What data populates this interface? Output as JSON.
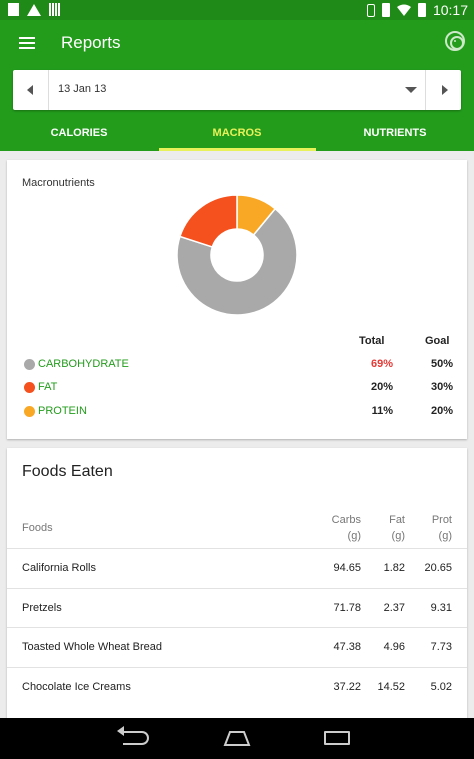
{
  "status_bar": {
    "time": "10:17"
  },
  "app_bar": {
    "title": "Reports",
    "menu_icon": "hamburger-menu-icon",
    "goal_icon": "target-icon"
  },
  "date_selector": {
    "value": "13 Jan 13",
    "prev_icon": "chevron-left-icon",
    "next_icon": "chevron-right-icon",
    "dropdown_icon": "dropdown-arrow-icon"
  },
  "tabs": [
    {
      "label": "CALORIES",
      "active": false
    },
    {
      "label": "MACROS",
      "active": true
    },
    {
      "label": "NUTRIENTS",
      "active": false
    }
  ],
  "colors": {
    "primary": "#239c1c",
    "status_bar": "#1f8a17",
    "tab_active": "#e8f15a",
    "over_goal": "#e53935"
  },
  "macros": {
    "title": "Macronutrients",
    "col_total": "Total",
    "col_goal": "Goal",
    "items": [
      {
        "label": "CARBOHYDRATE",
        "total": "69%",
        "goal": "50%",
        "color": "#a9a9a9",
        "value": 69,
        "over_goal": true
      },
      {
        "label": "FAT",
        "total": "20%",
        "goal": "30%",
        "color": "#f4511e",
        "value": 20,
        "over_goal": false
      },
      {
        "label": "PROTEIN",
        "total": "11%",
        "goal": "20%",
        "color": "#f9a825",
        "value": 11,
        "over_goal": false
      }
    ]
  },
  "foods": {
    "title": "Foods Eaten",
    "headers": {
      "food": "Foods",
      "carbs": "Carbs",
      "carbs_unit": "(g)",
      "fat": "Fat",
      "fat_unit": "(g)",
      "prot": "Prot",
      "prot_unit": "(g)"
    },
    "rows": [
      {
        "name": "California Rolls",
        "carbs": "94.65",
        "fat": "1.82",
        "prot": "20.65"
      },
      {
        "name": "Pretzels",
        "carbs": "71.78",
        "fat": "2.37",
        "prot": "9.31"
      },
      {
        "name": "Toasted Whole Wheat Bread",
        "carbs": "47.38",
        "fat": "4.96",
        "prot": "7.73"
      },
      {
        "name": "Chocolate Ice Creams",
        "carbs": "37.22",
        "fat": "14.52",
        "prot": "5.02"
      }
    ]
  },
  "nav_bar": {
    "back_icon": "back-icon",
    "home_icon": "home-icon",
    "recent_icon": "recent-apps-icon"
  }
}
